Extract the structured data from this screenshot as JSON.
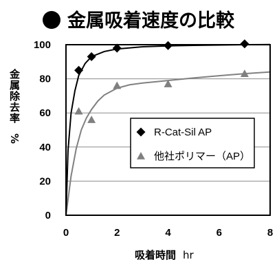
{
  "chart_data": {
    "type": "scatter",
    "title": "金属吸着速度の比較",
    "xlabel": "吸着時間",
    "xunit": "hr",
    "ylabel": "金属除去率",
    "yunit": "%",
    "xlim": [
      0,
      8
    ],
    "ylim": [
      0,
      100
    ],
    "x_ticks": [
      "0",
      "2",
      "4",
      "6",
      "8"
    ],
    "y_ticks": [
      "0",
      "20",
      "40",
      "60",
      "80",
      "100"
    ],
    "grid": "horizontal",
    "legend_position": "center-right",
    "series": [
      {
        "name": "R-Cat-Sil AP",
        "marker": "diamond",
        "color": "#000000",
        "x": [
          0.5,
          1,
          2,
          4,
          7
        ],
        "y": [
          85,
          93,
          98,
          99.5,
          100.5
        ],
        "fit_curve": [
          [
            0,
            0
          ],
          [
            0.08,
            38
          ],
          [
            0.2,
            60
          ],
          [
            0.35,
            73
          ],
          [
            0.5,
            82
          ],
          [
            0.75,
            89
          ],
          [
            1,
            93
          ],
          [
            1.5,
            96
          ],
          [
            2,
            97.5
          ],
          [
            3,
            98.8
          ],
          [
            4,
            99.3
          ],
          [
            5,
            99.6
          ],
          [
            6,
            99.8
          ],
          [
            7,
            100
          ],
          [
            8,
            100.1
          ]
        ]
      },
      {
        "name": "他社ポリマー（AP）",
        "marker": "triangle",
        "color": "#808080",
        "x": [
          0.5,
          1,
          2,
          4,
          7
        ],
        "y": [
          61,
          56,
          76,
          77,
          83
        ],
        "fit_curve": [
          [
            0,
            0
          ],
          [
            0.2,
            23
          ],
          [
            0.4,
            39
          ],
          [
            0.6,
            50
          ],
          [
            0.8,
            57
          ],
          [
            1,
            62
          ],
          [
            1.25,
            67
          ],
          [
            1.5,
            70.5
          ],
          [
            2,
            74.5
          ],
          [
            2.5,
            76.5
          ],
          [
            3,
            77.5
          ],
          [
            4,
            79
          ],
          [
            5,
            80.5
          ],
          [
            6,
            81.8
          ],
          [
            7,
            83
          ],
          [
            8,
            84
          ]
        ]
      }
    ]
  }
}
